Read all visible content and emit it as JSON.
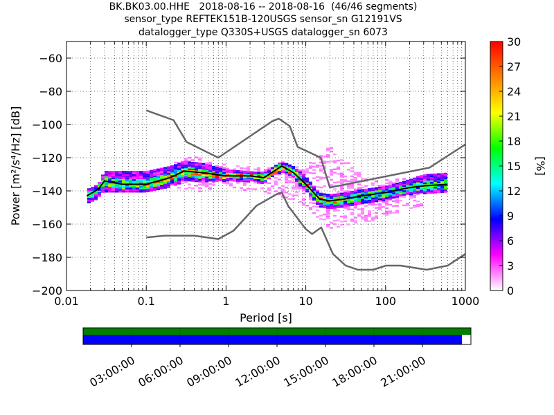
{
  "title_lines": [
    "BK.BK03.00.HHE   2018-08-16 -- 2018-08-16  (46/46 segments)",
    "sensor_type REFTEK151B-120USGS sensor_sn G12191VS",
    "datalogger_type Q330S+USGS datalogger_sn 6073"
  ],
  "chart_data": {
    "type": "heatmap",
    "title": "BK.BK03.00.HHE   2018-08-16 -- 2018-08-16  (46/46 segments)",
    "xlabel": "Period [s]",
    "ylabel": "Power [m²/s⁴/Hz] [dB]",
    "x_scale": "log",
    "xlim": [
      0.01,
      1000
    ],
    "ylim": [
      -200,
      -50
    ],
    "x_ticks": [
      0.01,
      0.1,
      1,
      10,
      100,
      1000
    ],
    "x_tick_labels": [
      "0.01",
      "0.1",
      "1",
      "10",
      "100",
      "1000"
    ],
    "y_ticks": [
      -200,
      -180,
      -160,
      -140,
      -120,
      -100,
      -80,
      -60
    ],
    "y_tick_labels": [
      "−200",
      "−180",
      "−160",
      "−140",
      "−120",
      "−100",
      "−80",
      "−60"
    ],
    "grid": true,
    "colorbar": {
      "label": "[%]",
      "range": [
        0,
        30
      ],
      "ticks": [
        0,
        3,
        6,
        9,
        12,
        15,
        18,
        21,
        24,
        27,
        30
      ],
      "tick_labels": [
        "0",
        "3",
        "6",
        "9",
        "12",
        "15",
        "18",
        "21",
        "24",
        "27",
        "30"
      ],
      "colors": [
        "#ffffff",
        "#ff00ff",
        "#0000ff",
        "#00ffff",
        "#00ff00",
        "#ffff00",
        "#ff8000",
        "#ff0000"
      ]
    },
    "mean_curve": {
      "x": [
        0.018,
        0.025,
        0.03,
        0.05,
        0.1,
        0.2,
        0.3,
        0.5,
        1,
        2,
        3,
        5,
        7,
        10,
        15,
        20,
        30,
        50,
        100,
        200,
        300,
        600
      ],
      "y": [
        -143,
        -139,
        -134,
        -136,
        -136,
        -132,
        -128,
        -129,
        -131,
        -131,
        -132,
        -125,
        -129,
        -136,
        -145,
        -146,
        -145,
        -143,
        -141,
        -138,
        -137,
        -136
      ]
    },
    "noise_model_high": {
      "x": [
        0.1,
        0.22,
        0.32,
        0.8,
        3.8,
        4.6,
        6.3,
        7.9,
        15.4,
        20,
        354.8,
        1000
      ],
      "y": [
        -91.5,
        -97.4,
        -110.5,
        -120,
        -98,
        -96.5,
        -101,
        -113.5,
        -120,
        -138,
        -126,
        -112
      ]
    },
    "noise_model_low": {
      "x": [
        0.1,
        0.17,
        0.4,
        0.8,
        1.24,
        2.4,
        4.3,
        5,
        6,
        10,
        12,
        15.6,
        21.9,
        31.6,
        45,
        70,
        101,
        154,
        328,
        600,
        1000
      ],
      "y": [
        -168,
        -167,
        -167,
        -169,
        -164,
        -149,
        -142,
        -141,
        -149,
        -163,
        -166,
        -162,
        -178,
        -185,
        -187.5,
        -187.5,
        -185,
        -185,
        -187.5,
        -185,
        -178
      ]
    },
    "density_bands": [
      {
        "x": [
          0.018,
          0.025,
          0.03,
          0.05,
          0.1,
          0.2,
          0.3,
          0.5,
          1,
          2,
          3,
          5,
          7,
          10,
          15,
          20,
          30,
          50,
          100,
          200,
          300,
          600
        ],
        "lo": [
          -147,
          -144,
          -140,
          -141,
          -140,
          -137,
          -134,
          -134,
          -134,
          -134,
          -135,
          -128,
          -132,
          -140,
          -149,
          -150,
          -149,
          -147,
          -145,
          -142,
          -141,
          -140
        ],
        "hi": [
          -139,
          -136,
          -128,
          -128,
          -128,
          -125,
          -122,
          -123,
          -127,
          -128,
          -129,
          -122,
          -125,
          -131,
          -141,
          -142,
          -141,
          -139,
          -137,
          -133,
          -130,
          -129
        ],
        "level": 6
      },
      {
        "x": [
          0.018,
          0.025,
          0.03,
          0.05,
          0.1,
          0.2,
          0.3,
          0.5,
          1,
          2,
          3,
          5,
          7,
          10,
          15,
          20,
          30,
          50,
          100,
          200,
          300,
          600
        ],
        "lo": [
          -145,
          -141,
          -137,
          -138,
          -138,
          -135,
          -131,
          -132,
          -132,
          -132,
          -134,
          -127,
          -131,
          -138,
          -147,
          -148,
          -147,
          -145,
          -143,
          -140,
          -139,
          -138
        ],
        "hi": [
          -141,
          -137,
          -131,
          -133,
          -133,
          -129,
          -125,
          -127,
          -129,
          -130,
          -130,
          -123,
          -127,
          -133,
          -143,
          -144,
          -143,
          -141,
          -139,
          -136,
          -134,
          -133
        ],
        "level": 14
      },
      {
        "x": [
          0.05,
          0.1,
          0.2,
          0.3,
          0.5,
          1,
          2,
          3,
          5,
          7,
          10,
          15,
          20,
          30
        ],
        "lo": [
          -137,
          -137,
          -134,
          -130,
          -131,
          -132,
          -132,
          -133,
          -127,
          -130,
          -137,
          -146,
          -147,
          -146
        ],
        "hi": [
          -135,
          -135,
          -131,
          -127,
          -128,
          -130,
          -130,
          -131,
          -124,
          -128,
          -135,
          -144,
          -145,
          -144
        ],
        "level": 22
      }
    ],
    "scatter_band": {
      "x": [
        0.2,
        0.3,
        0.5,
        1,
        3,
        10,
        20,
        30,
        50,
        70,
        100,
        200,
        300
      ],
      "lo": [
        -138,
        -138,
        -140,
        -138,
        -140,
        -150,
        -162,
        -163,
        -158,
        -160,
        -155,
        -150,
        -148
      ],
      "hi": [
        -125,
        -118,
        -120,
        -124,
        -126,
        -125,
        -113,
        -120,
        -130,
        -134,
        -133,
        -132,
        -130
      ],
      "level": 3
    }
  },
  "time_bar": {
    "tick_labels": [
      "03:00:00",
      "06:00:00",
      "09:00:00",
      "12:00:00",
      "15:00:00",
      "18:00:00",
      "21:00:00"
    ],
    "tick_hours": [
      3,
      6,
      9,
      12,
      15,
      18,
      21
    ],
    "range_hours": [
      0,
      24
    ],
    "data_coverage_fraction": 1.0,
    "processed_coverage_fraction": 0.977,
    "data_color": "#008000",
    "processed_color": "#0000ff"
  }
}
